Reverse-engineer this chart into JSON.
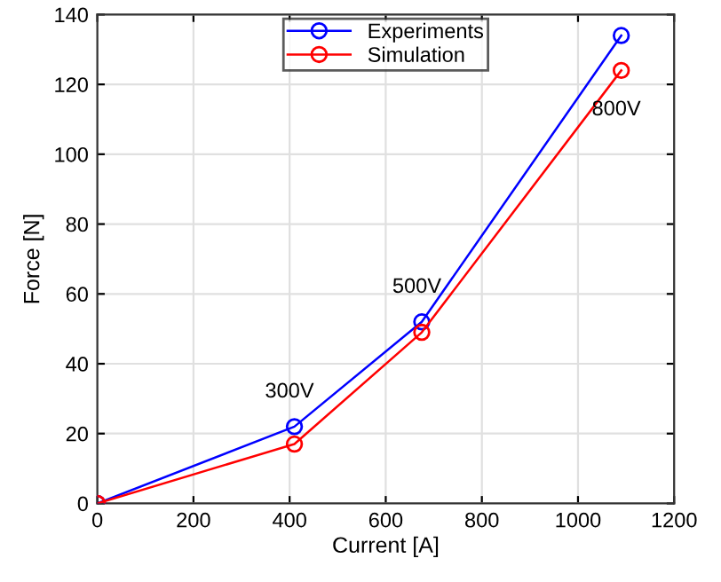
{
  "chart_data": {
    "type": "line",
    "xlabel": "Current [A]",
    "ylabel": "Force [N]",
    "x": [
      0,
      410,
      675,
      1090
    ],
    "series": [
      {
        "name": "Experiments",
        "color": "#0000ff",
        "values": [
          0,
          22,
          52,
          134
        ]
      },
      {
        "name": "Simulation",
        "color": "#ff0000",
        "values": [
          0,
          17,
          49,
          124
        ]
      }
    ],
    "annotations": [
      {
        "text": "300V",
        "x": 410,
        "y": 22
      },
      {
        "text": "500V",
        "x": 675,
        "y": 52
      },
      {
        "text": "800V",
        "x": 1090,
        "y": 124
      }
    ],
    "xlim": [
      0,
      1200
    ],
    "xticks": [
      0,
      200,
      400,
      600,
      800,
      1000,
      1200
    ],
    "ylim": [
      0,
      140
    ],
    "yticks": [
      0,
      20,
      40,
      60,
      80,
      100,
      120,
      140
    ],
    "grid": true,
    "legend": "top",
    "marker": "circle",
    "line_style": "solid"
  }
}
